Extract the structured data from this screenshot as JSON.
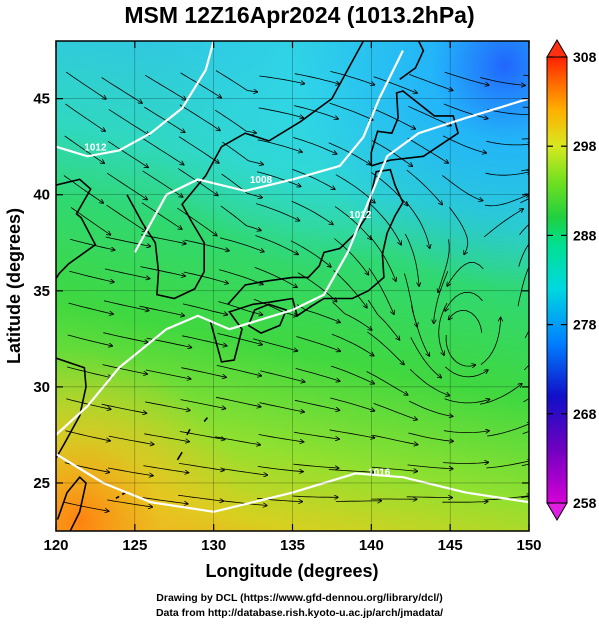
{
  "title": "MSM 12Z16Apr2024 (1013.2hPa)",
  "map": {
    "lon_range": [
      120,
      150
    ],
    "lat_range": [
      22.5,
      48
    ],
    "x_ticks": [
      120,
      125,
      130,
      135,
      140,
      145,
      150
    ],
    "y_ticks": [
      25,
      30,
      35,
      40,
      45
    ],
    "x_label": "Longitude (degrees)",
    "y_label": "Latitude  (degrees)",
    "field_description": "temperature shading with streamlines and white isobars",
    "isobar_labels": [
      "1012",
      "1008",
      "1012",
      "1016"
    ]
  },
  "colorbar": {
    "min": 258,
    "max": 308,
    "ticks": [
      308,
      298,
      288,
      278,
      268,
      258
    ],
    "colors": [
      "#d400d4",
      "#1010c8",
      "#00c8ff",
      "#00e080",
      "#20d020",
      "#d0e020",
      "#ff9000",
      "#ff2000"
    ]
  },
  "credits": {
    "line1": "Drawing by DCL (https://www.gfd-dennou.org/library/dcl/)",
    "line2": "Data from http://database.rish.kyoto-u.ac.jp/arch/jmadata/"
  }
}
